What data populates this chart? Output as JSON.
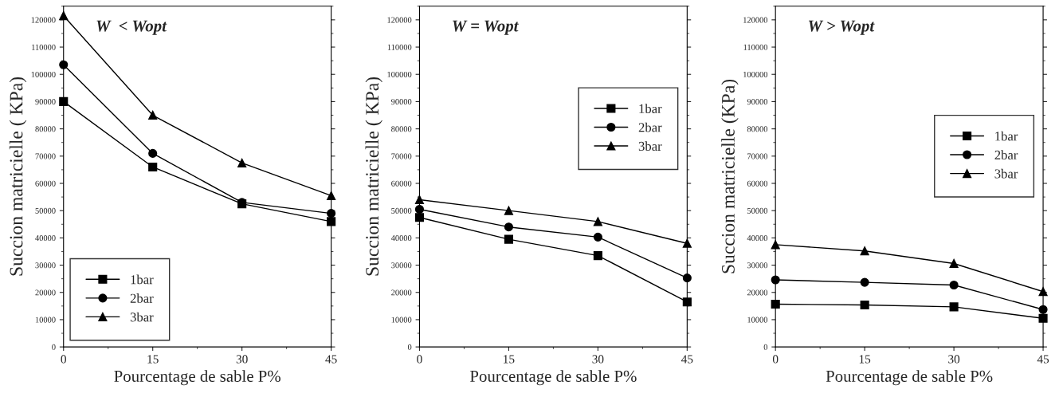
{
  "chart_data": [
    {
      "type": "line",
      "title": "W  < Wopt",
      "xlabel": "Pourcentage de sable P%",
      "ylabel": "Succion matricielle ( KPa)",
      "x": [
        0,
        15,
        30,
        45
      ],
      "xlim": [
        0,
        45
      ],
      "xticks": [
        0,
        15,
        30,
        45
      ],
      "ylim": [
        0,
        125000
      ],
      "yticks": [
        0,
        10000,
        20000,
        30000,
        40000,
        50000,
        60000,
        70000,
        80000,
        90000,
        100000,
        110000,
        120000
      ],
      "grid": false,
      "legend": "bottom left",
      "series": [
        {
          "name": "1bar",
          "color": "#000000",
          "marker": "square",
          "values": [
            90000,
            66000,
            52500,
            46000
          ]
        },
        {
          "name": "2bar",
          "color": "#000000",
          "marker": "circle",
          "values": [
            103500,
            71000,
            53000,
            49000
          ]
        },
        {
          "name": "3bar",
          "color": "#000000",
          "marker": "triangle",
          "values": [
            121500,
            85000,
            67500,
            55500
          ]
        }
      ]
    },
    {
      "type": "line",
      "title": "W = Wopt",
      "xlabel": "Pourcentage de sable P%",
      "ylabel": "Succion matricielle ( KPa)",
      "x": [
        0,
        15,
        30,
        45
      ],
      "xlim": [
        0,
        45
      ],
      "xticks": [
        0,
        15,
        30,
        45
      ],
      "ylim": [
        0,
        125000
      ],
      "yticks": [
        0,
        10000,
        20000,
        30000,
        40000,
        50000,
        60000,
        70000,
        80000,
        90000,
        100000,
        110000,
        120000
      ],
      "grid": false,
      "legend": "right",
      "series": [
        {
          "name": "1bar",
          "color": "#000000",
          "marker": "square",
          "values": [
            47500,
            39500,
            33500,
            16500
          ]
        },
        {
          "name": "2bar",
          "color": "#000000",
          "marker": "circle",
          "values": [
            50500,
            44000,
            40300,
            25300
          ]
        },
        {
          "name": "3bar",
          "color": "#000000",
          "marker": "triangle",
          "values": [
            54000,
            50000,
            46000,
            38000
          ]
        }
      ]
    },
    {
      "type": "line",
      "title": "W > Wopt",
      "xlabel": "Pourcentage de sable P%",
      "ylabel": "Succion matricielle (KPa)",
      "x": [
        0,
        15,
        30,
        45
      ],
      "xlim": [
        0,
        45
      ],
      "xticks": [
        0,
        15,
        30,
        45
      ],
      "ylim": [
        0,
        125000
      ],
      "yticks": [
        0,
        10000,
        20000,
        30000,
        40000,
        50000,
        60000,
        70000,
        80000,
        90000,
        100000,
        110000,
        120000
      ],
      "grid": false,
      "legend": "center right",
      "series": [
        {
          "name": "1bar",
          "color": "#000000",
          "marker": "square",
          "values": [
            15700,
            15400,
            14700,
            10500
          ]
        },
        {
          "name": "2bar",
          "color": "#000000",
          "marker": "circle",
          "values": [
            24600,
            23700,
            22700,
            13700
          ]
        },
        {
          "name": "3bar",
          "color": "#000000",
          "marker": "triangle",
          "values": [
            37500,
            35200,
            30600,
            20300
          ]
        }
      ]
    }
  ]
}
